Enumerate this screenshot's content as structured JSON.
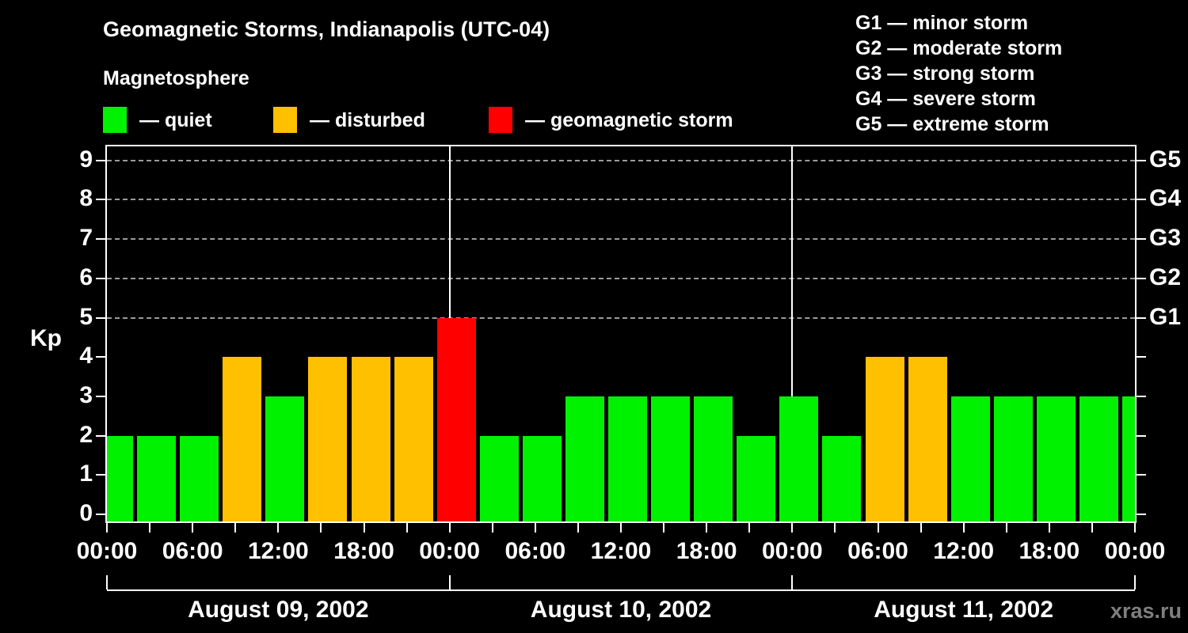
{
  "header": {
    "title": "Geomagnetic Storms, Indianapolis (UTC-04)",
    "subtitle": "Magnetosphere"
  },
  "condition_legend": {
    "items": [
      {
        "name": "quiet",
        "label": "— quiet",
        "color": "#00f200"
      },
      {
        "name": "disturbed",
        "label": "— disturbed",
        "color": "#ffc000"
      },
      {
        "name": "storm",
        "label": "— geomagnetic storm",
        "color": "#ff0000"
      }
    ]
  },
  "storm_scale_legend": {
    "lines": [
      "G1 — minor storm",
      "G2 — moderate storm",
      "G3 — strong storm",
      "G4 — severe storm",
      "G5 — extreme storm"
    ]
  },
  "watermark": "xras.ru",
  "chart_data": {
    "type": "bar",
    "title": "Geomagnetic Storms, Indianapolis (UTC-04)",
    "subtitle": "Magnetosphere",
    "ylabel": "Kp",
    "ylim": [
      0,
      9
    ],
    "y_ticks": [
      0,
      1,
      2,
      3,
      4,
      5,
      6,
      7,
      8,
      9
    ],
    "interval_hours": 3,
    "x_axis_time_labels": [
      "00:00",
      "06:00",
      "12:00",
      "18:00",
      "00:00",
      "06:00",
      "12:00",
      "18:00",
      "00:00",
      "06:00",
      "12:00",
      "18:00",
      "00:00"
    ],
    "right_axis_labels": [
      {
        "kp": 5,
        "label": "G1"
      },
      {
        "kp": 6,
        "label": "G2"
      },
      {
        "kp": 7,
        "label": "G3"
      },
      {
        "kp": 8,
        "label": "G4"
      },
      {
        "kp": 9,
        "label": "G5"
      }
    ],
    "dashed_gridlines_at_kp": [
      5,
      6,
      7,
      8,
      9
    ],
    "state_colors": {
      "quiet": "#00f200",
      "disturbed": "#ffc000",
      "storm": "#ff0000"
    },
    "days": [
      {
        "date": "August 09, 2002",
        "kp_values": [
          2,
          2,
          2,
          4,
          3,
          4,
          4,
          4
        ],
        "states": [
          "quiet",
          "quiet",
          "quiet",
          "disturbed",
          "quiet",
          "disturbed",
          "disturbed",
          "disturbed"
        ]
      },
      {
        "date": "August 10, 2002",
        "kp_values": [
          5,
          2,
          2,
          3,
          3,
          3,
          3,
          2
        ],
        "states": [
          "storm",
          "quiet",
          "quiet",
          "quiet",
          "quiet",
          "quiet",
          "quiet",
          "quiet"
        ]
      },
      {
        "date": "August 11, 2002",
        "kp_values": [
          3,
          2,
          4,
          4,
          3,
          3,
          3,
          3
        ],
        "states": [
          "quiet",
          "quiet",
          "disturbed",
          "disturbed",
          "quiet",
          "quiet",
          "quiet",
          "quiet"
        ]
      }
    ],
    "partial_last_bar": {
      "kp": 3,
      "state": "quiet"
    },
    "legend_position": "top",
    "grid": "dashed at storm levels only"
  }
}
